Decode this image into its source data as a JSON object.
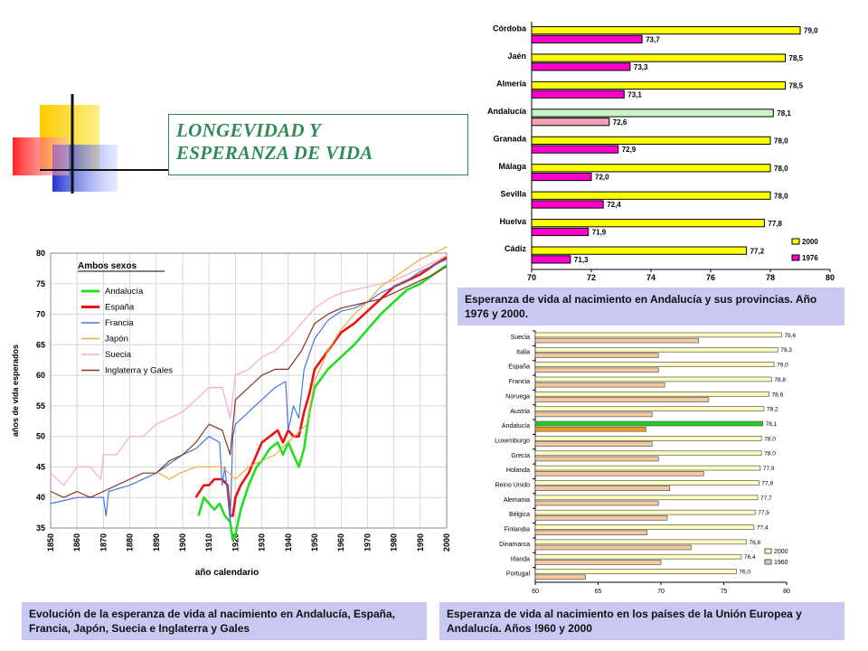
{
  "title": "LONGEVIDAD Y\nESPERANZA DE VIDA",
  "colors": {
    "yellow": "#ffff00",
    "magenta": "#ff00cc",
    "green": "#22cc22",
    "pink": "#f0a0b0",
    "lightgreen": "#c8f5c8",
    "cream": "#fffdc0",
    "peach": "#f5c8a0",
    "caption_bg": "#c8c8f2"
  },
  "captions": {
    "provinces": "Esperanza de vida al nacimiento en Andalucía y sus provincias. Año 1976 y 2000.",
    "line": "Evolución de la esperanza de vida al nacimiento en Andalucía, España, Francia, Japón, Suecia e Inglaterra y Gales",
    "eu": "Esperanza de vida al nacimiento en los países de la Unión Europea y Andalucía. Años !960 y 2000"
  },
  "chart_data": [
    {
      "type": "bar",
      "categories": [
        "Córdoba",
        "Jaén",
        "Almería",
        "Andalucía",
        "Granada",
        "Málaga",
        "Sevilla",
        "Huelva",
        "Cádiz"
      ],
      "series": [
        {
          "name": "2000",
          "values": [
            79.0,
            78.5,
            78.5,
            78.1,
            78.0,
            78.0,
            78.0,
            77.8,
            77.2
          ],
          "labels": [
            "79,0",
            "78,5",
            "78,5",
            "78,1",
            "78,0",
            "78,0",
            "78,0",
            "77,8",
            "77,2"
          ]
        },
        {
          "name": "1976",
          "values": [
            73.7,
            73.3,
            73.1,
            72.6,
            72.9,
            72.0,
            72.4,
            71.9,
            71.3
          ],
          "labels": [
            "73,7",
            "73,3",
            "73,1",
            "72,6",
            "72,9",
            "72,0",
            "72,4",
            "71,9",
            "71,3"
          ]
        }
      ],
      "xlim": [
        70,
        80
      ],
      "xticks": [
        "70",
        "72",
        "74",
        "76",
        "78",
        "80"
      ]
    },
    {
      "type": "line",
      "legend_title": "Ambos sexos",
      "xlabel": "año calendario",
      "ylabel": "años de vida esperados",
      "xlim": [
        1850,
        2000
      ],
      "ylim": [
        35,
        80
      ],
      "xticks": [
        "1850",
        "1860",
        "1870",
        "1880",
        "1890",
        "1900",
        "1910",
        "1920",
        "1930",
        "1940",
        "1950",
        "1960",
        "1970",
        "1980",
        "1990",
        "2000"
      ],
      "yticks": [
        "35",
        "40",
        "45",
        "50",
        "55",
        "60",
        "65",
        "70",
        "75",
        "80"
      ],
      "series": [
        {
          "name": "Andalucía",
          "color": "#22dd22",
          "points": [
            [
              1906,
              37
            ],
            [
              1908,
              40
            ],
            [
              1910,
              39
            ],
            [
              1912,
              38
            ],
            [
              1914,
              39
            ],
            [
              1916,
              37
            ],
            [
              1918,
              36
            ],
            [
              1919,
              33
            ],
            [
              1920,
              34
            ],
            [
              1922,
              38
            ],
            [
              1925,
              42
            ],
            [
              1928,
              45
            ],
            [
              1930,
              46
            ],
            [
              1933,
              48
            ],
            [
              1936,
              49
            ],
            [
              1938,
              47
            ],
            [
              1940,
              49
            ],
            [
              1942,
              47
            ],
            [
              1944,
              45
            ],
            [
              1946,
              48
            ],
            [
              1948,
              54
            ],
            [
              1950,
              58
            ],
            [
              1955,
              61
            ],
            [
              1960,
              63
            ],
            [
              1965,
              65
            ],
            [
              1970,
              67.5
            ],
            [
              1975,
              70
            ],
            [
              1980,
              72
            ],
            [
              1985,
              74
            ],
            [
              1990,
              75
            ],
            [
              1995,
              76.5
            ],
            [
              2000,
              78
            ]
          ]
        },
        {
          "name": "España",
          "color": "#ee1111",
          "points": [
            [
              1905,
              40
            ],
            [
              1908,
              42
            ],
            [
              1910,
              42
            ],
            [
              1912,
              43
            ],
            [
              1915,
              43
            ],
            [
              1917,
              42
            ],
            [
              1918,
              37
            ],
            [
              1919,
              37
            ],
            [
              1920,
              40
            ],
            [
              1922,
              42
            ],
            [
              1925,
              44
            ],
            [
              1928,
              47
            ],
            [
              1930,
              49
            ],
            [
              1933,
              50
            ],
            [
              1936,
              51
            ],
            [
              1938,
              49
            ],
            [
              1940,
              51
            ],
            [
              1942,
              50
            ],
            [
              1944,
              50
            ],
            [
              1946,
              54
            ],
            [
              1948,
              57
            ],
            [
              1950,
              61
            ],
            [
              1955,
              64
            ],
            [
              1960,
              67
            ],
            [
              1965,
              68.5
            ],
            [
              1970,
              70.5
            ],
            [
              1975,
              72.5
            ],
            [
              1980,
              74.5
            ],
            [
              1985,
              75.5
            ],
            [
              1990,
              76.5
            ],
            [
              1995,
              78
            ],
            [
              2000,
              79.3
            ]
          ]
        },
        {
          "name": "Francia",
          "color": "#4477dd",
          "points": [
            [
              1850,
              39
            ],
            [
              1860,
              40
            ],
            [
              1870,
              40
            ],
            [
              1871,
              37
            ],
            [
              1872,
              41
            ],
            [
              1880,
              42
            ],
            [
              1890,
              44
            ],
            [
              1900,
              47
            ],
            [
              1905,
              48
            ],
            [
              1910,
              50
            ],
            [
              1914,
              49
            ],
            [
              1915,
              42
            ],
            [
              1916,
              45
            ],
            [
              1918,
              36
            ],
            [
              1919,
              50
            ],
            [
              1920,
              52
            ],
            [
              1925,
              54
            ],
            [
              1930,
              56
            ],
            [
              1935,
              58
            ],
            [
              1939,
              59
            ],
            [
              1940,
              51
            ],
            [
              1942,
              55
            ],
            [
              1944,
              53
            ],
            [
              1946,
              61
            ],
            [
              1950,
              66
            ],
            [
              1955,
              69
            ],
            [
              1960,
              70.5
            ],
            [
              1965,
              71
            ],
            [
              1970,
              72
            ],
            [
              1975,
              73.5
            ],
            [
              1980,
              74.5
            ],
            [
              1985,
              75.5
            ],
            [
              1990,
              77
            ],
            [
              1995,
              78
            ],
            [
              2000,
              79
            ]
          ]
        },
        {
          "name": "Japón",
          "color": "#eeaa44",
          "points": [
            [
              1891,
              44
            ],
            [
              1895,
              43
            ],
            [
              1899,
              44
            ],
            [
              1905,
              45
            ],
            [
              1910,
              45
            ],
            [
              1915,
              45
            ],
            [
              1920,
              43
            ],
            [
              1925,
              45
            ],
            [
              1930,
              46
            ],
            [
              1935,
              47
            ],
            [
              1947,
              52
            ],
            [
              1950,
              59
            ],
            [
              1955,
              64
            ],
            [
              1960,
              67.5
            ],
            [
              1965,
              70
            ],
            [
              1970,
              72
            ],
            [
              1975,
              74.5
            ],
            [
              1980,
              76
            ],
            [
              1985,
              77.5
            ],
            [
              1990,
              79
            ],
            [
              1995,
              80
            ],
            [
              2000,
              81
            ]
          ]
        },
        {
          "name": "Suecia",
          "color": "#ffaabb",
          "points": [
            [
              1850,
              44
            ],
            [
              1855,
              42
            ],
            [
              1860,
              45
            ],
            [
              1865,
              45
            ],
            [
              1869,
              43
            ],
            [
              1870,
              47
            ],
            [
              1875,
              47
            ],
            [
              1880,
              50
            ],
            [
              1885,
              50
            ],
            [
              1890,
              52
            ],
            [
              1895,
              53
            ],
            [
              1900,
              54
            ],
            [
              1905,
              56
            ],
            [
              1910,
              58
            ],
            [
              1915,
              58
            ],
            [
              1918,
              53
            ],
            [
              1920,
              60
            ],
            [
              1925,
              61
            ],
            [
              1930,
              63
            ],
            [
              1935,
              64
            ],
            [
              1940,
              66
            ],
            [
              1945,
              68.5
            ],
            [
              1950,
              71
            ],
            [
              1955,
              72.5
            ],
            [
              1960,
              73.5
            ],
            [
              1965,
              74
            ],
            [
              1970,
              74.5
            ],
            [
              1975,
              75
            ],
            [
              1980,
              75.5
            ],
            [
              1985,
              76.5
            ],
            [
              1990,
              77.5
            ],
            [
              1995,
              78.5
            ],
            [
              2000,
              79.6
            ]
          ]
        },
        {
          "name": "Inglaterra y Gales",
          "color": "#883322",
          "points": [
            [
              1850,
              41
            ],
            [
              1855,
              40
            ],
            [
              1860,
              41
            ],
            [
              1865,
              40
            ],
            [
              1870,
              41
            ],
            [
              1875,
              42
            ],
            [
              1880,
              43
            ],
            [
              1885,
              44
            ],
            [
              1890,
              44
            ],
            [
              1895,
              46
            ],
            [
              1900,
              47
            ],
            [
              1905,
              49
            ],
            [
              1910,
              52
            ],
            [
              1915,
              51
            ],
            [
              1918,
              47
            ],
            [
              1920,
              56
            ],
            [
              1925,
              58
            ],
            [
              1930,
              60
            ],
            [
              1935,
              61
            ],
            [
              1940,
              61
            ],
            [
              1945,
              64
            ],
            [
              1950,
              68.5
            ],
            [
              1955,
              70
            ],
            [
              1960,
              71
            ],
            [
              1965,
              71.5
            ],
            [
              1970,
              72
            ],
            [
              1975,
              72.5
            ],
            [
              1980,
              73.5
            ],
            [
              1985,
              74.5
            ],
            [
              1990,
              75.5
            ],
            [
              1995,
              76.5
            ],
            [
              2000,
              77.8
            ]
          ]
        }
      ]
    },
    {
      "type": "bar",
      "categories": [
        "Suecia",
        "Italia",
        "España",
        "Francia",
        "Noruega",
        "Austria",
        "Andalucía",
        "Luxemburgo",
        "Grecia",
        "Holanda",
        "Reino Unido",
        "Alemania",
        "Bélgica",
        "Finlandia",
        "Dinamarca",
        "Irlanda",
        "Portugal"
      ],
      "series": [
        {
          "name": "2000",
          "values": [
            79.6,
            79.3,
            79.0,
            78.8,
            78.6,
            78.2,
            78.1,
            78.0,
            78.0,
            77.9,
            77.8,
            77.7,
            77.5,
            77.4,
            76.8,
            76.4,
            76.0
          ],
          "labels": [
            "79,6",
            "79,3",
            "79,0",
            "78,8",
            "78,6",
            "78,2",
            "78,1",
            "78,0",
            "78,0",
            "77,9",
            "77,8",
            "77,7",
            "77,5",
            "77,4",
            "76,8",
            "76,4",
            "76,0"
          ]
        },
        {
          "name": "1960",
          "values": [
            73.0,
            69.8,
            69.8,
            70.3,
            73.8,
            69.3,
            68.8,
            69.3,
            69.8,
            73.4,
            70.7,
            69.8,
            70.5,
            68.9,
            72.4,
            70.0,
            64.0
          ]
        }
      ],
      "xlim": [
        60,
        80
      ],
      "xticks": [
        "60",
        "65",
        "70",
        "75",
        "80"
      ]
    }
  ]
}
